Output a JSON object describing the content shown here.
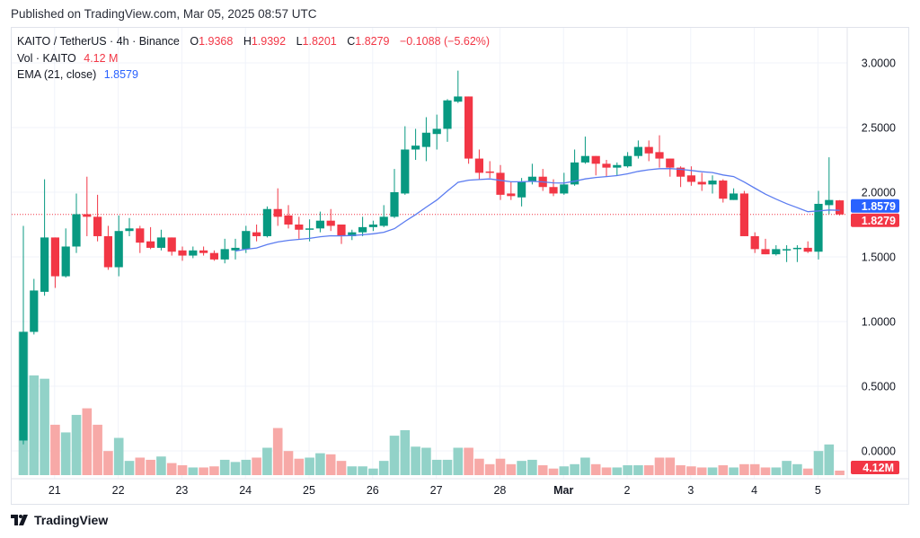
{
  "header": {
    "published": "Published on TradingView.com, Mar 05, 2025 08:57 UTC"
  },
  "legend": {
    "symbol": "KAITO / TetherUS · 4h · Binance",
    "o_label": "O",
    "o": "1.9368",
    "h_label": "H",
    "h": "1.9392",
    "l_label": "L",
    "l": "1.8201",
    "c_label": "C",
    "c": "1.8279",
    "change": "−0.1088 (−5.62%)",
    "vol_label": "Vol · KAITO",
    "vol": "4.12 M",
    "ema_label": "EMA (21, close)",
    "ema": "1.8579"
  },
  "footer": {
    "brand": "TradingView"
  },
  "colors": {
    "up": "#089981",
    "down": "#f23645",
    "vol_up": "#92d2c8",
    "vol_down": "#f7a9a7",
    "ema": "#2962ff",
    "grid": "#f0f3fa"
  },
  "chart_data": {
    "type": "candlestick",
    "interval": "4h",
    "ylim": [
      -0.18,
      3.2
    ],
    "y_ticks": [
      "0.0000",
      "0.5000",
      "1.0000",
      "1.5000",
      "2.0000",
      "2.5000",
      "3.0000"
    ],
    "y_tick_values": [
      0,
      0.5,
      1,
      1.5,
      2,
      2.5,
      3
    ],
    "x_ticks": [
      "21",
      "22",
      "23",
      "24",
      "25",
      "26",
      "27",
      "28",
      "Mar",
      "2",
      "3",
      "4",
      "5"
    ],
    "x_tick_candle_index": [
      3,
      9,
      15,
      21,
      27,
      33,
      39,
      45,
      51,
      57,
      63,
      69,
      75
    ],
    "grid": true,
    "last_price_label": "1.8279",
    "ema_label_value": "1.8579",
    "volume_label": "4.12M",
    "ohlc": [
      [
        0.08,
        1.74,
        0.05,
        0.92
      ],
      [
        0.92,
        1.33,
        0.9,
        1.24
      ],
      [
        1.23,
        2.1,
        1.2,
        1.65
      ],
      [
        1.65,
        1.65,
        1.26,
        1.35
      ],
      [
        1.35,
        1.72,
        1.34,
        1.58
      ],
      [
        1.58,
        1.99,
        1.53,
        1.83
      ],
      [
        1.83,
        2.12,
        1.66,
        1.81
      ],
      [
        1.81,
        1.98,
        1.62,
        1.66
      ],
      [
        1.66,
        1.74,
        1.4,
        1.42
      ],
      [
        1.42,
        1.82,
        1.35,
        1.7
      ],
      [
        1.7,
        1.8,
        1.66,
        1.72
      ],
      [
        1.72,
        1.74,
        1.53,
        1.61
      ],
      [
        1.62,
        1.73,
        1.56,
        1.57
      ],
      [
        1.57,
        1.71,
        1.55,
        1.65
      ],
      [
        1.65,
        1.65,
        1.51,
        1.54
      ],
      [
        1.55,
        1.58,
        1.47,
        1.51
      ],
      [
        1.51,
        1.58,
        1.49,
        1.55
      ],
      [
        1.55,
        1.58,
        1.51,
        1.53
      ],
      [
        1.53,
        1.55,
        1.47,
        1.48
      ],
      [
        1.48,
        1.64,
        1.45,
        1.56
      ],
      [
        1.55,
        1.64,
        1.48,
        1.57
      ],
      [
        1.56,
        1.74,
        1.53,
        1.7
      ],
      [
        1.69,
        1.75,
        1.62,
        1.66
      ],
      [
        1.66,
        1.89,
        1.65,
        1.87
      ],
      [
        1.87,
        2.03,
        1.74,
        1.81
      ],
      [
        1.82,
        1.9,
        1.72,
        1.75
      ],
      [
        1.75,
        1.81,
        1.64,
        1.71
      ],
      [
        1.71,
        1.79,
        1.62,
        1.72
      ],
      [
        1.72,
        1.85,
        1.69,
        1.78
      ],
      [
        1.78,
        1.87,
        1.7,
        1.74
      ],
      [
        1.75,
        1.75,
        1.6,
        1.66
      ],
      [
        1.66,
        1.71,
        1.63,
        1.69
      ],
      [
        1.69,
        1.81,
        1.66,
        1.73
      ],
      [
        1.73,
        1.78,
        1.7,
        1.75
      ],
      [
        1.74,
        1.9,
        1.73,
        1.81
      ],
      [
        1.81,
        2.18,
        1.8,
        2.0
      ],
      [
        1.99,
        2.51,
        1.98,
        2.33
      ],
      [
        2.33,
        2.49,
        2.25,
        2.36
      ],
      [
        2.35,
        2.58,
        2.24,
        2.46
      ],
      [
        2.45,
        2.6,
        2.33,
        2.49
      ],
      [
        2.49,
        2.72,
        2.39,
        2.71
      ],
      [
        2.7,
        2.94,
        2.69,
        2.74
      ],
      [
        2.74,
        2.74,
        2.22,
        2.26
      ],
      [
        2.26,
        2.33,
        2.1,
        2.15
      ],
      [
        2.16,
        2.24,
        2.11,
        2.15
      ],
      [
        2.15,
        2.21,
        1.94,
        1.98
      ],
      [
        1.99,
        2.08,
        1.94,
        1.97
      ],
      [
        1.96,
        2.11,
        1.89,
        2.08
      ],
      [
        2.08,
        2.22,
        2.06,
        2.12
      ],
      [
        2.12,
        2.18,
        2.01,
        2.04
      ],
      [
        2.04,
        2.1,
        1.97,
        1.99
      ],
      [
        1.99,
        2.15,
        1.98,
        2.06
      ],
      [
        2.06,
        2.33,
        2.05,
        2.23
      ],
      [
        2.23,
        2.43,
        2.22,
        2.28
      ],
      [
        2.28,
        2.28,
        2.13,
        2.22
      ],
      [
        2.22,
        2.25,
        2.12,
        2.19
      ],
      [
        2.19,
        2.23,
        2.13,
        2.21
      ],
      [
        2.2,
        2.31,
        2.19,
        2.28
      ],
      [
        2.28,
        2.4,
        2.26,
        2.35
      ],
      [
        2.35,
        2.4,
        2.24,
        2.3
      ],
      [
        2.31,
        2.44,
        2.19,
        2.26
      ],
      [
        2.26,
        2.26,
        2.12,
        2.19
      ],
      [
        2.19,
        2.2,
        2.04,
        2.12
      ],
      [
        2.13,
        2.2,
        2.05,
        2.08
      ],
      [
        2.08,
        2.15,
        2.01,
        2.06
      ],
      [
        2.06,
        2.13,
        1.99,
        2.09
      ],
      [
        2.09,
        2.1,
        1.92,
        1.95
      ],
      [
        1.94,
        2.03,
        1.94,
        1.99
      ],
      [
        1.99,
        2.01,
        1.66,
        1.66
      ],
      [
        1.66,
        1.69,
        1.53,
        1.56
      ],
      [
        1.56,
        1.64,
        1.52,
        1.52
      ],
      [
        1.52,
        1.59,
        1.51,
        1.56
      ],
      [
        1.55,
        1.59,
        1.46,
        1.56
      ],
      [
        1.56,
        1.59,
        1.46,
        1.57
      ],
      [
        1.57,
        1.62,
        1.53,
        1.54
      ],
      [
        1.54,
        2.01,
        1.48,
        1.91
      ],
      [
        1.9,
        2.27,
        1.83,
        1.94
      ],
      [
        1.9368,
        1.9392,
        1.8201,
        1.8279
      ]
    ],
    "volume_m": [
      131,
      91,
      88,
      46,
      39,
      55,
      61,
      46,
      22,
      34,
      13,
      16,
      14,
      17,
      11,
      9,
      7,
      7,
      8,
      14,
      12,
      14,
      16,
      25,
      43,
      22,
      15,
      16,
      20,
      19,
      13,
      8,
      8,
      6,
      13,
      36,
      41,
      26,
      25,
      14,
      14,
      25,
      25,
      15,
      10,
      15,
      10,
      13,
      14,
      9,
      6,
      8,
      10,
      16,
      10,
      7,
      7,
      9,
      9,
      9,
      16,
      16,
      9,
      8,
      7,
      7,
      9,
      7,
      10,
      10,
      7,
      7,
      13,
      10,
      6,
      22,
      28,
      4.12
    ],
    "ema_period": 21
  }
}
